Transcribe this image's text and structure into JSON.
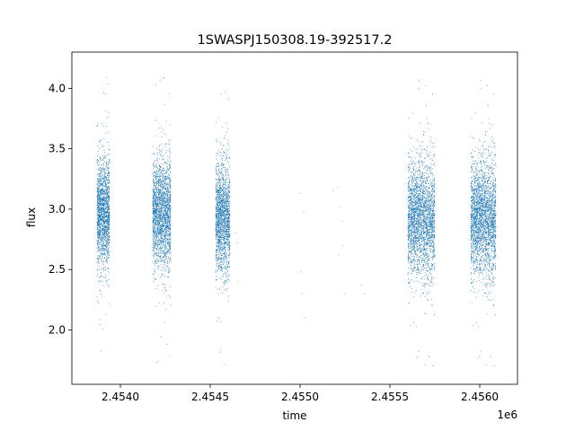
{
  "chart_data": {
    "type": "scatter",
    "title": "1SWASPJ150308.19-392517.2",
    "xlabel": "time",
    "ylabel": "flux",
    "x_offset_label": "1e6",
    "xlim": [
      2453730,
      2456210
    ],
    "ylim": [
      1.55,
      4.3
    ],
    "xticks": [
      2.454,
      2.4545,
      2.455,
      2.4555,
      2.456
    ],
    "xtick_labels": [
      "2.4540",
      "2.4545",
      "2.4550",
      "2.4555",
      "2.4560"
    ],
    "yticks": [
      2.0,
      2.5,
      3.0,
      3.5,
      4.0
    ],
    "ytick_labels": [
      "2.0",
      "2.5",
      "3.0",
      "3.5",
      "4.0"
    ],
    "grid": false,
    "marker_color": "#1f77b4",
    "series": [
      {
        "seasons": [
          {
            "start": 2453870,
            "end": 2453940,
            "mean": 2.97,
            "spread": 0.22,
            "count": 1800
          },
          {
            "start": 2454180,
            "end": 2454280,
            "mean": 2.97,
            "spread": 0.22,
            "count": 2200
          },
          {
            "start": 2454530,
            "end": 2454610,
            "mean": 2.92,
            "spread": 0.22,
            "count": 1800
          },
          {
            "start": 2455600,
            "end": 2455750,
            "mean": 2.92,
            "spread": 0.23,
            "count": 2800
          },
          {
            "start": 2455950,
            "end": 2456090,
            "mean": 2.92,
            "spread": 0.23,
            "count": 2800
          }
        ],
        "sparse_points": [
          [
            2454640,
            2.8
          ],
          [
            2454650,
            2.72
          ],
          [
            2454655,
            2.4
          ],
          [
            2455000,
            3.13
          ],
          [
            2455020,
            2.97
          ],
          [
            2455005,
            2.48
          ],
          [
            2455010,
            2.3
          ],
          [
            2455025,
            2.1
          ],
          [
            2455210,
            3.18
          ],
          [
            2455225,
            3.02
          ],
          [
            2455235,
            2.9
          ],
          [
            2455240,
            2.7
          ],
          [
            2455215,
            2.62
          ],
          [
            2455250,
            2.3
          ],
          [
            2455340,
            2.37
          ],
          [
            2455360,
            2.3
          ],
          [
            2455185,
            3.15
          ]
        ]
      }
    ]
  }
}
